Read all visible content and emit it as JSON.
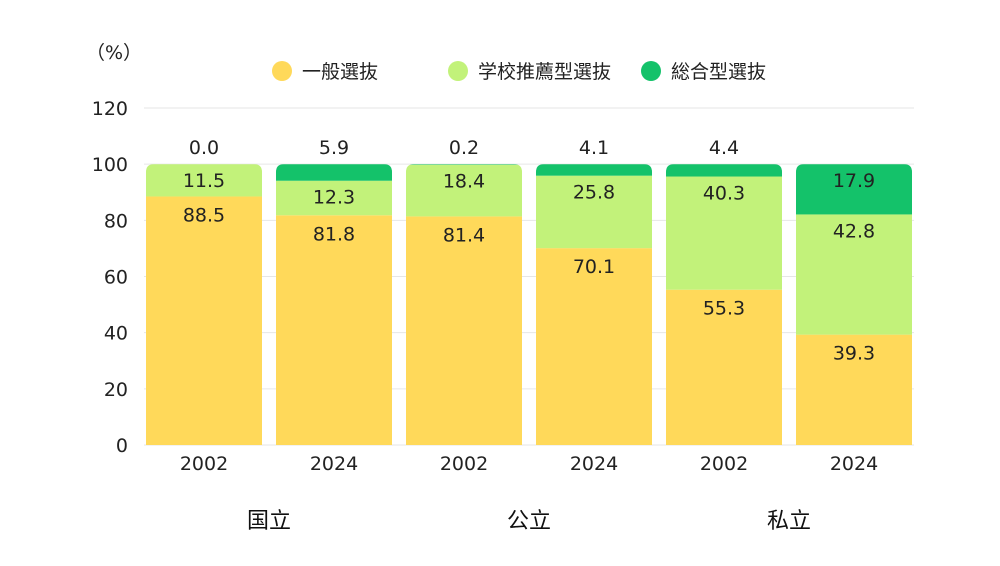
{
  "chart_data": {
    "type": "bar",
    "stacked": true,
    "unit_label": "（%）",
    "ylim": [
      0,
      120
    ],
    "yticks": [
      0,
      20,
      40,
      60,
      80,
      100,
      120
    ],
    "grid": true,
    "legend_position": "top",
    "series": [
      {
        "name": "一般選抜",
        "color": "#FFD95A"
      },
      {
        "name": "学校推薦型選抜",
        "color": "#C2F27A"
      },
      {
        "name": "総合型選抜",
        "color": "#14C26A"
      }
    ],
    "groups": [
      {
        "name": "国立",
        "bars": [
          {
            "x": "2002",
            "values": [
              88.5,
              11.5,
              0.0
            ],
            "labels": [
              "88.5",
              "11.5",
              "0.0"
            ]
          },
          {
            "x": "2024",
            "values": [
              81.8,
              12.3,
              5.9
            ],
            "labels": [
              "81.8",
              "12.3",
              "5.9"
            ]
          }
        ]
      },
      {
        "name": "公立",
        "bars": [
          {
            "x": "2002",
            "values": [
              81.4,
              18.4,
              0.2
            ],
            "labels": [
              "81.4",
              "18.4",
              "0.2"
            ]
          },
          {
            "x": "2024",
            "values": [
              70.1,
              25.8,
              4.1
            ],
            "labels": [
              "70.1",
              "25.8",
              "4.1"
            ]
          }
        ]
      },
      {
        "name": "私立",
        "bars": [
          {
            "x": "2002",
            "values": [
              55.3,
              40.3,
              4.4
            ],
            "labels": [
              "55.3",
              "40.3",
              "4.4"
            ]
          },
          {
            "x": "2024",
            "values": [
              39.3,
              42.8,
              17.9
            ],
            "labels": [
              "39.3",
              "42.8",
              "17.9"
            ]
          }
        ]
      }
    ]
  }
}
